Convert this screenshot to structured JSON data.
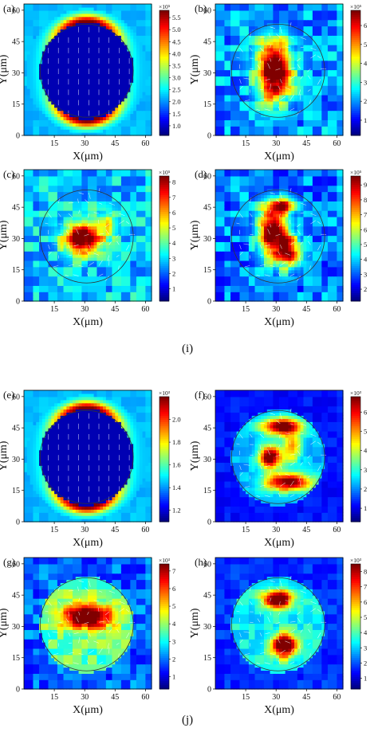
{
  "figure": {
    "group_labels": [
      "(i)",
      "(j)"
    ]
  },
  "chart_data": [
    {
      "type": "heatmap",
      "panel_label": "(a)",
      "xlabel": "X(μm)",
      "ylabel": "Y(μm)",
      "xticks": [
        15,
        30,
        45,
        60
      ],
      "yticks": [
        0,
        15,
        30,
        45,
        60
      ],
      "xlim": [
        0,
        63
      ],
      "ylim": [
        0,
        63
      ],
      "colorbar": {
        "multiplier": "×10⁵",
        "ticks": [
          1.0,
          1.5,
          2.0,
          2.5,
          3.0,
          3.5,
          4.0,
          4.5,
          5.0,
          5.5
        ],
        "range": [
          0.6,
          5.8
        ],
        "decimals": 1
      },
      "pattern": "uniform",
      "circle": {
        "center": [
          31,
          31
        ],
        "radius": 23
      }
    },
    {
      "type": "heatmap",
      "panel_label": "(b)",
      "xlabel": "X(μm)",
      "ylabel": "Y(μm)",
      "xticks": [
        15,
        30,
        45,
        60
      ],
      "yticks": [
        0,
        15,
        30,
        45,
        60
      ],
      "xlim": [
        0,
        63
      ],
      "ylim": [
        0,
        63
      ],
      "colorbar": {
        "multiplier": "×10⁵",
        "ticks": [
          1,
          2,
          3,
          4,
          5,
          6
        ],
        "range": [
          0.2,
          6.8
        ],
        "decimals": 0
      },
      "pattern": "center_blob",
      "circle": {
        "center": [
          31,
          31
        ],
        "radius": 23
      }
    },
    {
      "type": "heatmap",
      "panel_label": "(c)",
      "xlabel": "X(μm)",
      "ylabel": "Y(μm)",
      "xticks": [
        15,
        30,
        45,
        60
      ],
      "yticks": [
        0,
        15,
        30,
        45,
        60
      ],
      "xlim": [
        0,
        63
      ],
      "ylim": [
        0,
        63
      ],
      "colorbar": {
        "multiplier": "×10⁵",
        "ticks": [
          1,
          2,
          3,
          4,
          5,
          6,
          7,
          8
        ],
        "range": [
          0.2,
          8.4
        ],
        "decimals": 0
      },
      "pattern": "triangle",
      "circle": {
        "center": [
          31,
          31
        ],
        "radius": 23
      }
    },
    {
      "type": "heatmap",
      "panel_label": "(d)",
      "xlabel": "X(μm)",
      "ylabel": "Y(μm)",
      "xticks": [
        15,
        30,
        45,
        60
      ],
      "yticks": [
        0,
        15,
        30,
        45,
        60
      ],
      "xlim": [
        0,
        63
      ],
      "ylim": [
        0,
        63
      ],
      "colorbar": {
        "multiplier": "×10⁵",
        "ticks": [
          2,
          3,
          4,
          5,
          6,
          7,
          8,
          9
        ],
        "range": [
          1.2,
          9.6
        ],
        "decimals": 0
      },
      "pattern": "scattered",
      "circle": {
        "center": [
          31,
          31
        ],
        "radius": 23
      }
    },
    {
      "type": "heatmap",
      "panel_label": "(e)",
      "xlabel": "X(μm)",
      "ylabel": "Y(μm)",
      "xticks": [
        15,
        30,
        45,
        60
      ],
      "yticks": [
        0,
        15,
        30,
        45,
        60
      ],
      "xlim": [
        0,
        63
      ],
      "ylim": [
        0,
        63
      ],
      "colorbar": {
        "multiplier": "×10³",
        "ticks": [
          1.2,
          1.4,
          1.6,
          1.8,
          2.0
        ],
        "range": [
          1.1,
          2.2
        ],
        "decimals": 1
      },
      "pattern": "uniform",
      "circle": {
        "center": [
          31,
          31
        ],
        "radius": 23
      }
    },
    {
      "type": "heatmap",
      "panel_label": "(f)",
      "xlabel": "X(μm)",
      "ylabel": "Y(μm)",
      "xticks": [
        15,
        30,
        45,
        60
      ],
      "yticks": [
        0,
        15,
        30,
        45,
        60
      ],
      "xlim": [
        0,
        63
      ],
      "ylim": [
        0,
        63
      ],
      "colorbar": {
        "multiplier": "×10³",
        "ticks": [
          1,
          2,
          3,
          4,
          5,
          6
        ],
        "range": [
          0.3,
          6.8
        ],
        "decimals": 0
      },
      "pattern": "s_shape",
      "circle": {
        "center": [
          31,
          31
        ],
        "radius": 23
      }
    },
    {
      "type": "heatmap",
      "panel_label": "(g)",
      "xlabel": "X(μm)",
      "ylabel": "Y(μm)",
      "xticks": [
        15,
        30,
        45,
        60
      ],
      "yticks": [
        0,
        15,
        30,
        45,
        60
      ],
      "xlim": [
        0,
        63
      ],
      "ylim": [
        0,
        63
      ],
      "colorbar": {
        "multiplier": "×10³",
        "ticks": [
          1,
          2,
          3,
          4,
          5,
          6,
          7
        ],
        "range": [
          0.3,
          7.4
        ],
        "decimals": 0
      },
      "pattern": "h_blob",
      "circle": {
        "center": [
          31,
          31
        ],
        "radius": 23
      }
    },
    {
      "type": "heatmap",
      "panel_label": "(h)",
      "xlabel": "X(μm)",
      "ylabel": "Y(μm)",
      "xticks": [
        15,
        30,
        45,
        60
      ],
      "yticks": [
        0,
        15,
        30,
        45,
        60
      ],
      "xlim": [
        0,
        63
      ],
      "ylim": [
        0,
        63
      ],
      "colorbar": {
        "multiplier": "×10³",
        "ticks": [
          1,
          2,
          3,
          4,
          5,
          6,
          7,
          8
        ],
        "range": [
          0.3,
          8.5
        ],
        "decimals": 0
      },
      "pattern": "two_blobs",
      "circle": {
        "center": [
          31,
          31
        ],
        "radius": 23
      }
    }
  ]
}
